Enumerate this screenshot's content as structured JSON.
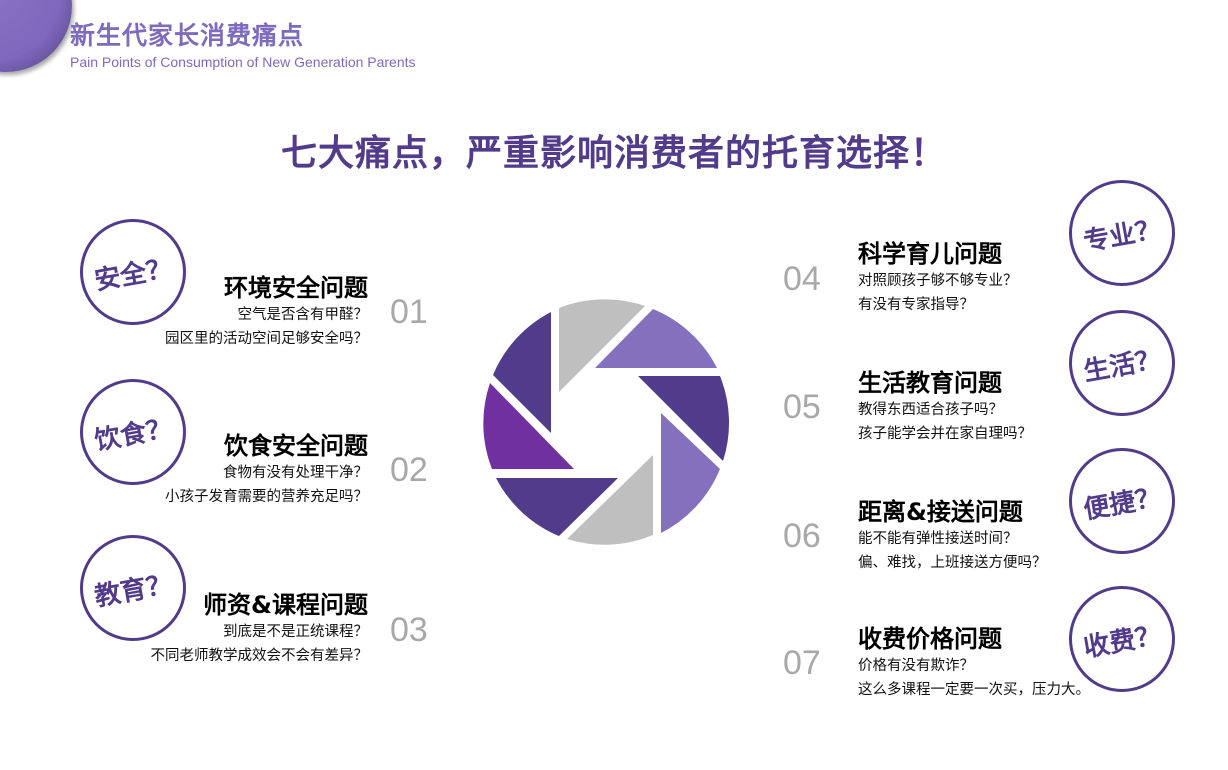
{
  "header": {
    "title": "新生代家长消费痛点",
    "subtitle": "Pain Points of Consumption of New Generation Parents"
  },
  "main_title": "七大痛点，严重影响消费者的托育选择！",
  "colors": {
    "accent": "#523b8a",
    "light_purple": "#8470bd",
    "purple": "#7030a0",
    "gray": "#bfbfbf"
  },
  "items": [
    {
      "num": "01",
      "badge": "安全？",
      "title": "环境安全问题",
      "lines": [
        "空气是否含有甲醛？",
        "园区里的活动空间足够安全吗？"
      ]
    },
    {
      "num": "02",
      "badge": "饮食？",
      "title": "饮食安全问题",
      "lines": [
        "食物有没有处理干净？",
        "小孩子发育需要的营养充足吗？"
      ]
    },
    {
      "num": "03",
      "badge": "教育？",
      "title": "师资&课程问题",
      "lines": [
        "到底是不是正统课程？",
        "不同老师教学成效会不会有差异？"
      ]
    },
    {
      "num": "04",
      "badge": "专业？",
      "title": "科学育儿问题",
      "lines": [
        "对照顾孩子够不够专业？",
        "有没有专家指导？"
      ]
    },
    {
      "num": "05",
      "badge": "生活？",
      "title": "生活教育问题",
      "lines": [
        "教得东西适合孩子吗？",
        "孩子能学会并在家自理吗？"
      ]
    },
    {
      "num": "06",
      "badge": "便捷？",
      "title": "距离&接送问题",
      "lines": [
        "能不能有弹性接送时间？",
        "偏、难找，上班接送方便吗？"
      ]
    },
    {
      "num": "07",
      "badge": "收费？",
      "title": "收费价格问题",
      "lines": [
        "价格有没有欺诈？",
        "这么多课程一定要一次买，压力大。"
      ]
    }
  ]
}
